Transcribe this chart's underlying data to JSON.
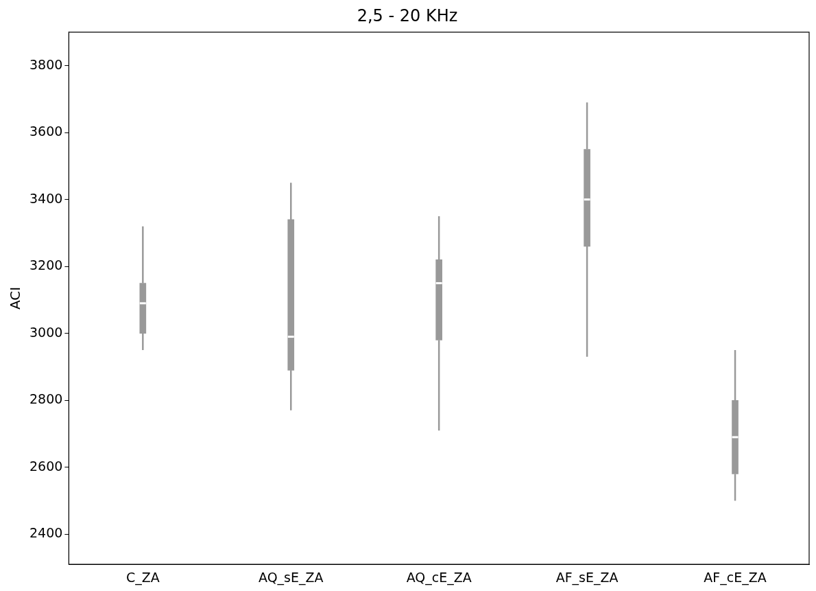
{
  "chart_data": {
    "type": "box",
    "title": "2,5 - 20 KHz",
    "ylabel": "ACI",
    "categories": [
      "C_ZA",
      "AQ_sE_ZA",
      "AQ_cE_ZA",
      "AF_sE_ZA",
      "AF_cE_ZA"
    ],
    "color": "#999999",
    "boxes": [
      {
        "low": 2950,
        "q1": 3000,
        "median": 3090,
        "q3": 3150,
        "high": 3320
      },
      {
        "low": 2770,
        "q1": 2890,
        "median": 2990,
        "q3": 3340,
        "high": 3450
      },
      {
        "low": 2710,
        "q1": 2980,
        "median": 3150,
        "q3": 3220,
        "high": 3350
      },
      {
        "low": 2930,
        "q1": 3260,
        "median": 3400,
        "q3": 3550,
        "high": 3690
      },
      {
        "low": 2500,
        "q1": 2580,
        "median": 2690,
        "q3": 2800,
        "high": 2950
      }
    ],
    "ylim": [
      2310,
      3900
    ],
    "yticks": [
      2400,
      2600,
      2800,
      3000,
      3200,
      3400,
      3600,
      3800
    ],
    "grid": false,
    "legend": false
  }
}
